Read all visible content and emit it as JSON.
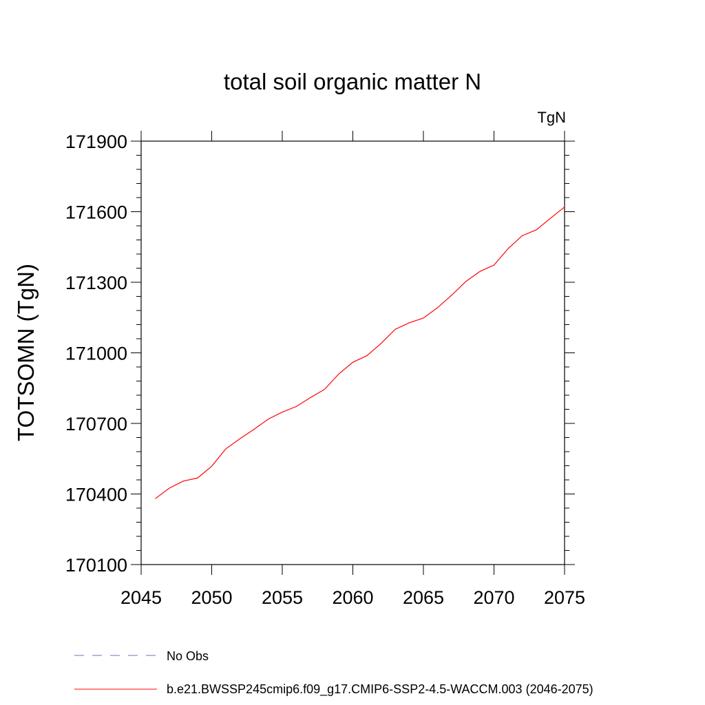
{
  "chart_data": {
    "type": "line",
    "title": "total soil organic matter N",
    "units_label": "TgN",
    "ylabel": "TOTSOMN  (TgN)",
    "xlabel": "",
    "xlim": [
      2045,
      2075
    ],
    "ylim": [
      170100,
      171900
    ],
    "xticks": [
      2045,
      2050,
      2055,
      2060,
      2065,
      2070,
      2075
    ],
    "yticks": [
      170100,
      170400,
      170700,
      171000,
      171300,
      171600,
      171900
    ],
    "grid": false,
    "legend_position": "bottom",
    "series": [
      {
        "name": "b.e21.BWSSP245cmip6.f09_g17.CMIP6-SSP2-4.5-WACCM.003 (2046-2075)",
        "color": "#ff0000",
        "style": "solid",
        "x": [
          2046,
          2047,
          2048,
          2049,
          2050,
          2051,
          2052,
          2053,
          2054,
          2055,
          2056,
          2057,
          2058,
          2059,
          2060,
          2061,
          2062,
          2063,
          2064,
          2065,
          2066,
          2067,
          2068,
          2069,
          2070,
          2071,
          2072,
          2073,
          2074,
          2075
        ],
        "y": [
          170380,
          170425,
          170455,
          170468,
          170518,
          170592,
          170635,
          170675,
          170718,
          170748,
          170772,
          170810,
          170845,
          170910,
          170960,
          170988,
          171040,
          171100,
          171128,
          171148,
          171192,
          171245,
          171303,
          171346,
          171373,
          171443,
          171498,
          171523,
          171572,
          171620
        ]
      },
      {
        "name": "No Obs",
        "color": "#7a6fb0",
        "style": "dashed",
        "x": [],
        "y": []
      }
    ]
  }
}
